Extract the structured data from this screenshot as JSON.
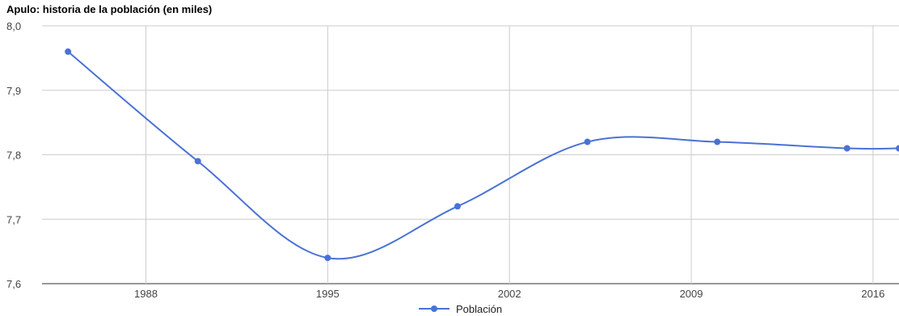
{
  "chart_data": {
    "type": "line",
    "title": "Apulo: historia de la población (en miles)",
    "xlabel": "",
    "ylabel": "",
    "x_ticks": [
      "1988",
      "1995",
      "2002",
      "2009",
      "2016"
    ],
    "y_ticks": [
      "8,0",
      "7,9",
      "7,8",
      "7,7",
      "7,6"
    ],
    "xlim": [
      1984,
      2017
    ],
    "ylim": [
      7.6,
      8.0
    ],
    "grid": true,
    "legend_position": "bottom",
    "series": [
      {
        "name": "Población",
        "color": "#4a72d4",
        "x": [
          1985,
          1990,
          1995,
          2000,
          2005,
          2010,
          2015,
          2017
        ],
        "y": [
          7.96,
          7.79,
          7.64,
          7.72,
          7.82,
          7.82,
          7.81,
          7.81
        ]
      }
    ]
  }
}
